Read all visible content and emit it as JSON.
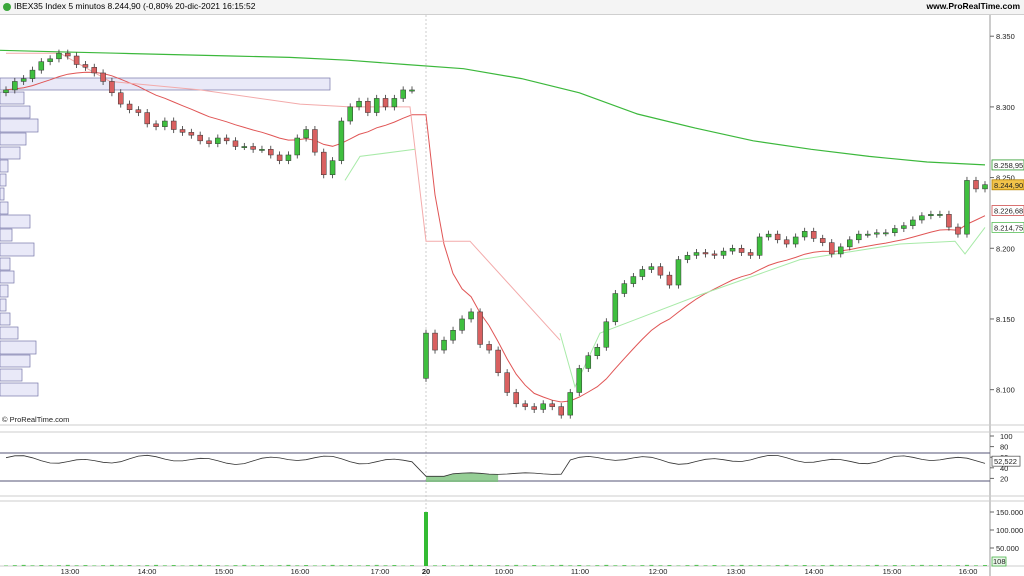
{
  "header": {
    "title": "IBEX35 Index 5 minutos 8.244,90 (-0,80% 20-dic-2021 16:15:52",
    "brand": "www.ProRealTime.com"
  },
  "watermark": "© ProRealTime.com",
  "colors": {
    "up": "#3fbf3f",
    "down": "#d96060",
    "ma_long": "#3cb83c",
    "ma_short": "#e05555",
    "band_upper": "#f3aaaa",
    "band_lower": "#a8eaa8",
    "rsi": "#333333",
    "volume": "#33bb33"
  },
  "chart_data": [
    {
      "type": "candlestick",
      "title": "IBEX35 Index 5 minutos",
      "ylim": [
        8075,
        8365
      ],
      "yticks": [
        "8.350",
        "8.300",
        "8.250",
        "8.200",
        "8.150",
        "8.100"
      ],
      "xticks": [
        "13:00",
        "14:00",
        "15:00",
        "16:00",
        "17:00",
        "20",
        "10:00",
        "11:00",
        "12:00",
        "13:00",
        "14:00",
        "15:00",
        "16:00"
      ],
      "price_labels": [
        {
          "text": "8.258,95",
          "role": "long-ma"
        },
        {
          "text": "8.244,90",
          "role": "last-price"
        },
        {
          "text": "8.226,68",
          "role": "short-ma"
        },
        {
          "text": "8.214,75",
          "role": "lower-band"
        }
      ],
      "closes": [
        8312,
        8318,
        8320,
        8326,
        8332,
        8334,
        8338,
        8336,
        8330,
        8328,
        8324,
        8318,
        8310,
        8302,
        8298,
        8296,
        8288,
        8286,
        8290,
        8284,
        8282,
        8280,
        8276,
        8274,
        8278,
        8276,
        8272,
        8272,
        8270,
        8270,
        8266,
        8262,
        8266,
        8278,
        8284,
        8268,
        8252,
        8262,
        8290,
        8300,
        8304,
        8296,
        8306,
        8300,
        8306,
        8312,
        8312,
        8140,
        8128,
        8135,
        8142,
        8150,
        8155,
        8132,
        8128,
        8112,
        8098,
        8090,
        8088,
        8086,
        8090,
        8088,
        8082,
        8098,
        8115,
        8124,
        8130,
        8148,
        8168,
        8175,
        8180,
        8185,
        8187,
        8181,
        8174,
        8192,
        8195,
        8197,
        8196,
        8195,
        8198,
        8200,
        8197,
        8195,
        8208,
        8210,
        8206,
        8203,
        8208,
        8212,
        8207,
        8204,
        8196,
        8201,
        8206,
        8210,
        8210,
        8211,
        8211,
        8214,
        8216,
        8220,
        8223,
        8224,
        8224,
        8215,
        8210,
        8248,
        8242,
        8245
      ],
      "ma_long": [
        8340,
        8339,
        8338,
        8337,
        8336,
        8335,
        8333,
        8330,
        8327,
        8320,
        8310,
        8295,
        8285,
        8276,
        8270,
        8265,
        8261,
        8258.95
      ],
      "rsi": {
        "ylim": [
          0,
          100
        ],
        "levels": [
          70,
          30
        ],
        "ticks": [
          "100",
          "80",
          "60",
          "40",
          "20"
        ],
        "value": "52,522"
      },
      "volume": {
        "ticks": [
          "150.000",
          "100.000",
          "50.000"
        ],
        "last": "108",
        "spike": 150000
      }
    }
  ]
}
